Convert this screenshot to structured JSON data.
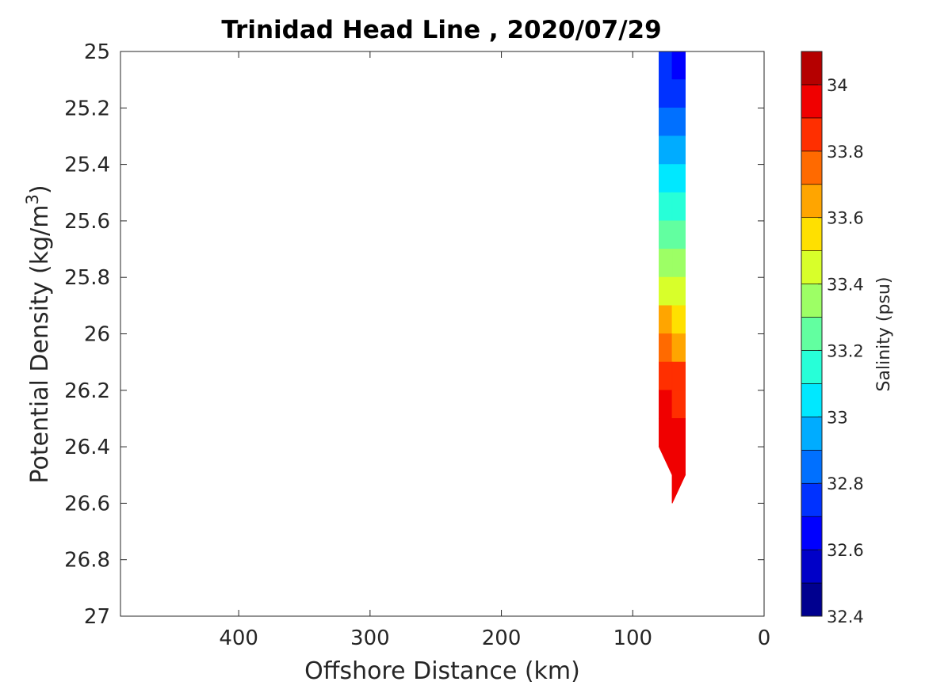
{
  "chart_data": {
    "type": "contour",
    "title": "Trinidad Head Line , 2020/07/29",
    "xlabel": "Offshore Distance (km)",
    "ylabel_main": "Potential Density (kg/m",
    "ylabel_sup": "3",
    "ylabel_close": ")",
    "colorbar_label": "Salinity (psu)",
    "xlim": [
      490,
      0
    ],
    "ylim": [
      25,
      27
    ],
    "y_reversed": true,
    "x_reversed": true,
    "x_ticks": [
      "400",
      "300",
      "200",
      "100",
      "0"
    ],
    "x_tick_values": [
      400,
      300,
      200,
      100,
      0
    ],
    "y_ticks": [
      "25",
      "25.2",
      "25.4",
      "25.6",
      "25.8",
      "26",
      "26.2",
      "26.4",
      "26.6",
      "26.8",
      "27"
    ],
    "y_tick_values": [
      25,
      25.2,
      25.4,
      25.6,
      25.8,
      26,
      26.2,
      26.4,
      26.6,
      26.8,
      27
    ],
    "colorbar": {
      "range": [
        32.4,
        34.1
      ],
      "ticks": [
        "32.4",
        "32.6",
        "32.8",
        "33",
        "33.2",
        "33.4",
        "33.6",
        "33.8",
        "34"
      ],
      "tick_values": [
        32.4,
        32.6,
        32.8,
        33,
        33.2,
        33.4,
        33.6,
        33.8,
        34
      ],
      "levels": [
        32.4,
        32.5,
        32.6,
        32.7,
        32.8,
        32.9,
        33.0,
        33.1,
        33.2,
        33.3,
        33.4,
        33.5,
        33.6,
        33.7,
        33.8,
        33.9,
        34.0,
        34.1
      ],
      "colors": [
        "#00008f",
        "#0000c8",
        "#0000ff",
        "#0032ff",
        "#0070ff",
        "#00acff",
        "#00e8ff",
        "#27ffd8",
        "#62ffa0",
        "#9dff65",
        "#d8ff2a",
        "#ffe000",
        "#ffa500",
        "#ff6a00",
        "#ff2f00",
        "#f00000",
        "#b50000"
      ]
    },
    "section": {
      "x_km": [
        80,
        70,
        60
      ],
      "station_max_density": [
        26.4,
        26.6,
        26.5
      ],
      "density": [
        25.0,
        25.1,
        25.2,
        25.3,
        25.4,
        25.5,
        25.6,
        25.7,
        25.8,
        25.9,
        26.0,
        26.1,
        26.2,
        26.3,
        26.4,
        26.5,
        26.6
      ],
      "salinity": [
        [
          32.67,
          32.66,
          32.62
        ],
        [
          32.75,
          32.72,
          32.68
        ],
        [
          32.83,
          32.8,
          32.76
        ],
        [
          32.92,
          32.88,
          32.84
        ],
        [
          33.02,
          32.98,
          32.94
        ],
        [
          33.12,
          33.08,
          33.04
        ],
        [
          33.22,
          33.18,
          33.14
        ],
        [
          33.32,
          33.28,
          33.24
        ],
        [
          33.43,
          33.39,
          33.34
        ],
        [
          33.55,
          33.51,
          33.46
        ],
        [
          33.7,
          33.66,
          33.58
        ],
        [
          33.78,
          33.83,
          33.68
        ],
        [
          33.88,
          33.9,
          33.85
        ],
        [
          33.9,
          33.93,
          33.91
        ],
        [
          33.93,
          33.95,
          33.94
        ],
        [
          null,
          33.96,
          33.96
        ],
        [
          null,
          33.97,
          null
        ]
      ]
    }
  },
  "colors": {
    "axis": "#262626",
    "background": "#ffffff"
  }
}
